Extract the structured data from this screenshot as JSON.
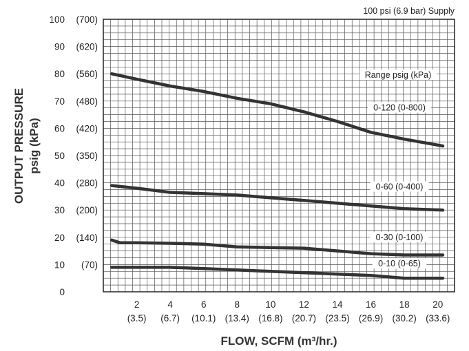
{
  "chart_data": {
    "type": "line",
    "supply_note": "100 psi (6.9 bar) Supply",
    "xlabel": "FLOW, SCFM (m³/hr.)",
    "ylabel_line1": "OUTPUT PRESSURE",
    "ylabel_line2": "psig (kPa)",
    "xlim": [
      0,
      21
    ],
    "ylim": [
      0,
      100
    ],
    "grid": true,
    "x_ticks": [
      {
        "main": "2",
        "sub": "(3.5)",
        "value": 2
      },
      {
        "main": "4",
        "sub": "(6.7)",
        "value": 4
      },
      {
        "main": "6",
        "sub": "(10.1)",
        "value": 6
      },
      {
        "main": "8",
        "sub": "(13.4)",
        "value": 8
      },
      {
        "main": "10",
        "sub": "(16.8)",
        "value": 10
      },
      {
        "main": "12",
        "sub": "(20.7)",
        "value": 12
      },
      {
        "main": "14",
        "sub": "(23.5)",
        "value": 14
      },
      {
        "main": "16",
        "sub": "(26.9)",
        "value": 16
      },
      {
        "main": "18",
        "sub": "(30.2)",
        "value": 18
      },
      {
        "main": "20",
        "sub": "(33.6)",
        "value": 20
      }
    ],
    "y_ticks": [
      {
        "main": "100",
        "sub": "(700)",
        "value": 100
      },
      {
        "main": "90",
        "sub": "(620)",
        "value": 90
      },
      {
        "main": "80",
        "sub": "(560)",
        "value": 80
      },
      {
        "main": "70",
        "sub": "(480)",
        "value": 70
      },
      {
        "main": "60",
        "sub": "(420)",
        "value": 60
      },
      {
        "main": "50",
        "sub": "(350)",
        "value": 50
      },
      {
        "main": "40",
        "sub": "(280)",
        "value": 40
      },
      {
        "main": "30",
        "sub": "(200)",
        "value": 30
      },
      {
        "main": "20",
        "sub": "(140)",
        "value": 20
      },
      {
        "main": "10",
        "sub": "(70)",
        "value": 10
      },
      {
        "main": "0",
        "sub": "",
        "value": 0
      }
    ],
    "legend_title": "Range psig (kPa)",
    "series": [
      {
        "name": "0-120 (0-800)",
        "x": [
          0.5,
          2,
          4,
          6,
          8,
          10,
          12,
          14,
          16,
          18,
          20.3
        ],
        "y": [
          80,
          78,
          75.5,
          73.5,
          71,
          69,
          66,
          62.5,
          58.5,
          56,
          53.5
        ]
      },
      {
        "name": "0-60 (0-400)",
        "x": [
          0.5,
          2,
          4,
          6,
          8,
          10,
          12,
          14,
          16,
          18,
          20.3
        ],
        "y": [
          39,
          38,
          36.5,
          36,
          35.5,
          34.5,
          33.5,
          32.5,
          31.5,
          30.5,
          30
        ]
      },
      {
        "name": "0-30 (0-100)",
        "x": [
          0.5,
          1,
          2,
          4,
          6,
          8,
          10,
          12,
          14,
          16,
          18,
          20.3
        ],
        "y": [
          19,
          18,
          18,
          17.8,
          17.5,
          16.5,
          16.2,
          16,
          15,
          14,
          13.5,
          13.5
        ]
      },
      {
        "name": "0-10 (0-65)",
        "x": [
          0.5,
          2,
          4,
          6,
          8,
          10,
          12,
          14,
          16,
          18,
          20.3
        ],
        "y": [
          9,
          9,
          9,
          8.5,
          8,
          7.5,
          7,
          6.5,
          6,
          5,
          5
        ]
      }
    ],
    "series_color": "#333333"
  }
}
